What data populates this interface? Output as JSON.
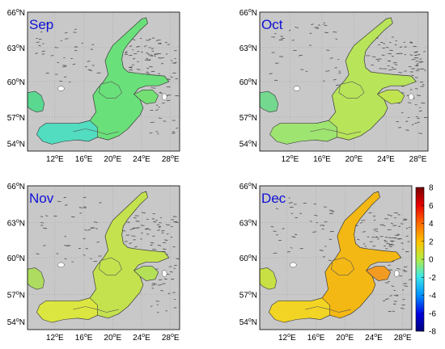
{
  "panels": [
    {
      "label": "Sep",
      "fill": "#6ae07a",
      "south_fill": "#52dcc0",
      "west_fill": "#5ad890",
      "east_fill": "#74e074"
    },
    {
      "label": "Oct",
      "fill": "#b8e45a",
      "south_fill": "#9ee470",
      "west_fill": "#74d88e",
      "east_fill": "#c0e450"
    },
    {
      "label": "Nov",
      "fill": "#c4e24e",
      "south_fill": "#dce640",
      "west_fill": "#aedc60",
      "east_fill": "#b4e058"
    },
    {
      "label": "Dec",
      "fill": "#f4b814",
      "south_fill": "#f2d424",
      "west_fill": "#c8e044",
      "east_fill": "#f29a22"
    }
  ],
  "lat_ticks": [
    {
      "deg": "54",
      "hemi": "N"
    },
    {
      "deg": "57",
      "hemi": "N"
    },
    {
      "deg": "60",
      "hemi": "N"
    },
    {
      "deg": "63",
      "hemi": "N"
    },
    {
      "deg": "66",
      "hemi": "N"
    }
  ],
  "lon_ticks": [
    {
      "deg": "12",
      "hemi": "E"
    },
    {
      "deg": "16",
      "hemi": "E"
    },
    {
      "deg": "20",
      "hemi": "E"
    },
    {
      "deg": "24",
      "hemi": "E"
    },
    {
      "deg": "28",
      "hemi": "E"
    }
  ],
  "colorbar": {
    "ticks": [
      "8",
      "6",
      "4",
      "2",
      "0",
      "-2",
      "-4",
      "-6",
      "-8"
    ],
    "min": -8,
    "max": 8,
    "colormap": [
      "#7a0000",
      "#e60000",
      "#ff6a00",
      "#ffc400",
      "#b4ec46",
      "#3ce8e8",
      "#0090ff",
      "#0000e0",
      "#00007a"
    ]
  },
  "colors": {
    "land": "#c8c8c8",
    "sea_outline": "#3a3a3a",
    "label": "#1010d8"
  }
}
